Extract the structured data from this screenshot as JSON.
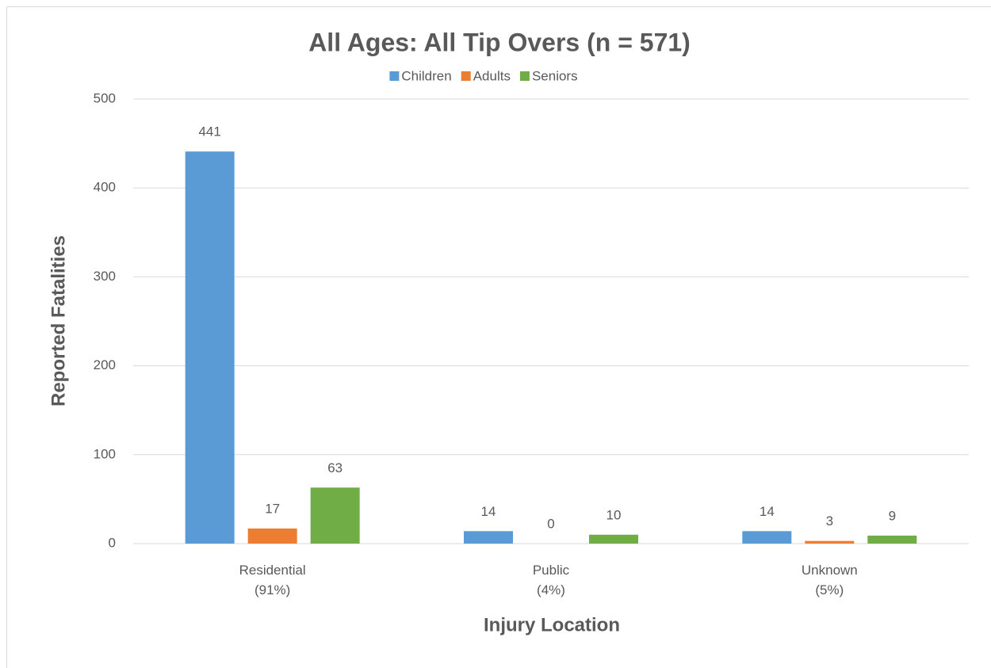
{
  "chart_data": {
    "type": "bar",
    "title": "All Ages: All Tip Overs (n = 571)",
    "categories": [
      "Residential\n(91%)",
      "Public\n(4%)",
      "Unknown\n(5%)"
    ],
    "series": [
      {
        "name": "Children",
        "color": "#5b9bd5",
        "values": [
          441,
          14,
          14
        ]
      },
      {
        "name": "Adults",
        "color": "#ed7d31",
        "values": [
          17,
          0,
          3
        ]
      },
      {
        "name": "Seniors",
        "color": "#70ad47",
        "values": [
          63,
          10,
          9
        ]
      }
    ],
    "x_label": "Injury Location",
    "y_label": "Reported Fatalities",
    "ylim": [
      0,
      500
    ],
    "yticks": [
      0,
      100,
      200,
      300,
      400,
      500
    ],
    "grid": true,
    "legend": "top"
  }
}
